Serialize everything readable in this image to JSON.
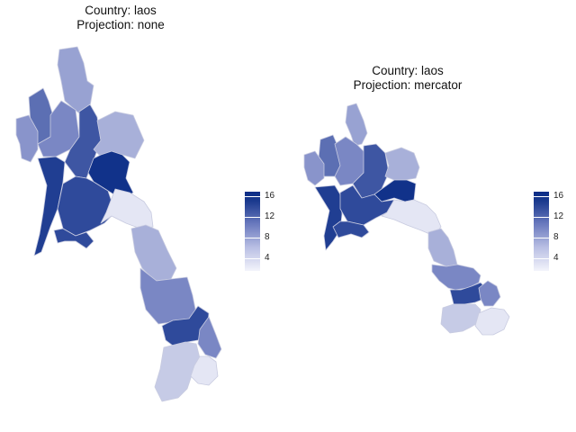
{
  "panels": [
    {
      "title_line1": "Country: laos",
      "title_line2": "Projection: none",
      "legend": {
        "labels": [
          "16",
          "12",
          "8",
          "4"
        ],
        "min": 1,
        "max": 16.5
      }
    },
    {
      "title_line1": "Country: laos",
      "title_line2": "Projection: mercator",
      "legend": {
        "labels": [
          "16",
          "12",
          "8",
          "4"
        ],
        "min": 1,
        "max": 16.5
      }
    }
  ],
  "colors": {
    "low": "#f3f4fb",
    "mid": "#7e8ac6",
    "high": "#0a2c86",
    "border": "#c8cbe0"
  },
  "regions": [
    {
      "name": "phongsaly",
      "value": 7
    },
    {
      "name": "luang-namtha",
      "value": 11
    },
    {
      "name": "bokeo",
      "value": 8
    },
    {
      "name": "oudomxay",
      "value": 9
    },
    {
      "name": "luang-prabang",
      "value": 13
    },
    {
      "name": "houaphanh",
      "value": 6
    },
    {
      "name": "xayabury",
      "value": 15
    },
    {
      "name": "xiangkhouang",
      "value": 16
    },
    {
      "name": "vientiane-province",
      "value": 14
    },
    {
      "name": "vientiane-capital",
      "value": 14
    },
    {
      "name": "bolikhamxay",
      "value": 2
    },
    {
      "name": "khammouane",
      "value": 6
    },
    {
      "name": "savannakhet",
      "value": 9
    },
    {
      "name": "saravane",
      "value": 14
    },
    {
      "name": "sekong",
      "value": 9
    },
    {
      "name": "champasak",
      "value": 4
    },
    {
      "name": "attapeu",
      "value": 2
    }
  ]
}
